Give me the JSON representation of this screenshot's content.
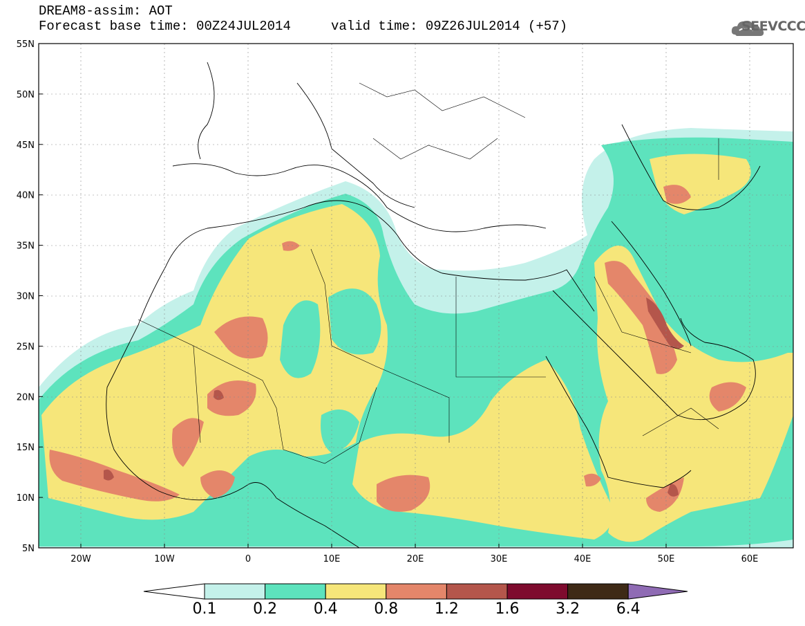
{
  "header": {
    "title": "DREAM8-assim: AOT",
    "base_time": "Forecast base time: 00Z24JUL2014",
    "valid_time": "valid time: 09Z26JUL2014 (+57)"
  },
  "logo": {
    "text": "SEEVCCC",
    "icon": "cloud-icon"
  },
  "map": {
    "lat_labels": [
      "55N",
      "50N",
      "45N",
      "40N",
      "35N",
      "30N",
      "25N",
      "20N",
      "15N",
      "10N",
      "5N"
    ],
    "lon_labels": [
      "20W",
      "10W",
      "0",
      "10E",
      "20E",
      "30E",
      "40E",
      "50E",
      "60E"
    ]
  },
  "colorbar": {
    "labels": [
      "0.1",
      "0.2",
      "0.4",
      "0.8",
      "1.2",
      "1.6",
      "3.2",
      "6.4"
    ],
    "colors": [
      "#ffffff",
      "#c4f1ea",
      "#5de3bd",
      "#f6e67a",
      "#e4866a",
      "#b4564b",
      "#7e0b2e",
      "#3e2a16",
      "#8f6bb4"
    ]
  }
}
